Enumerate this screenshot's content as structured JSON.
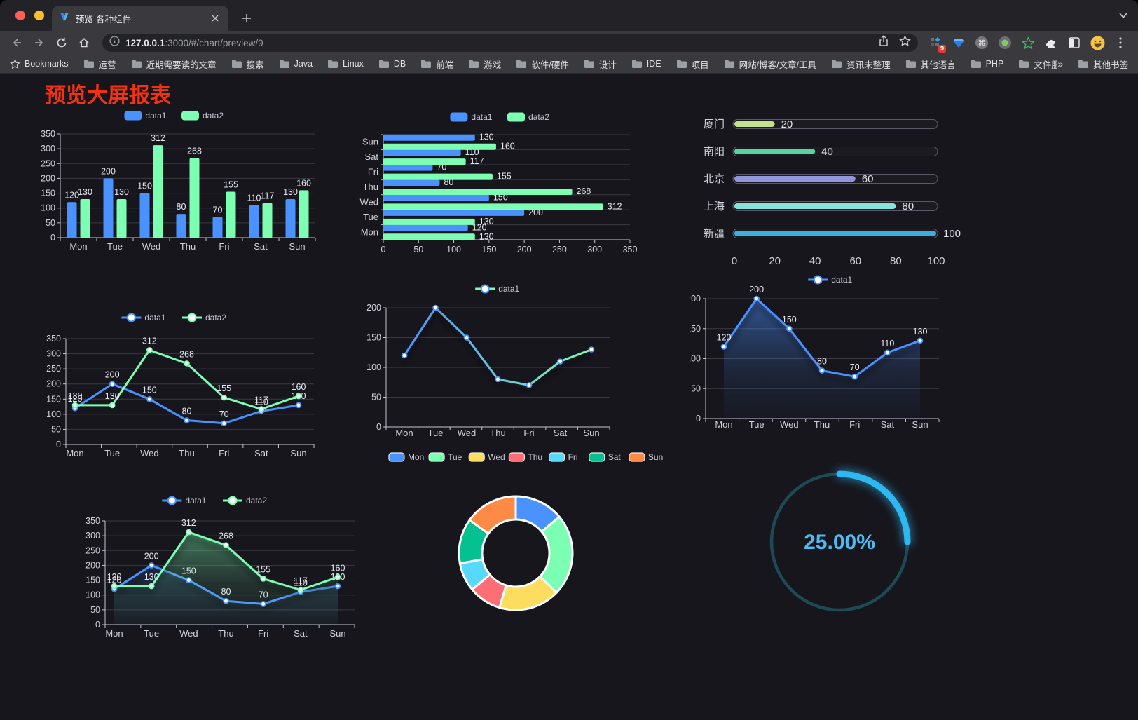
{
  "browser": {
    "tab": {
      "title": "预览-各种组件"
    },
    "url": {
      "host": "127.0.0.1",
      "rest": ":3000/#/chart/preview/9"
    },
    "extension_badge": "9",
    "bookmarks_label": "Bookmarks",
    "bookmarks": [
      "运营",
      "近期需要读的文章",
      "搜索",
      "Java",
      "Linux",
      "DB",
      "前端",
      "游戏",
      "软件/硬件",
      "设计",
      "IDE",
      "项目",
      "网站/博客/文章/工具",
      "资讯未整理",
      "其他语言",
      "PHP",
      "文件服务器"
    ],
    "bookmarks_overflow": "»",
    "other_bookmarks": "其他书签"
  },
  "page": {
    "title": "预览大屏报表"
  },
  "chart_data": [
    {
      "id": "bar-vertical",
      "type": "bar",
      "categories": [
        "Mon",
        "Tue",
        "Wed",
        "Thu",
        "Fri",
        "Sat",
        "Sun"
      ],
      "ylim": [
        0,
        350
      ],
      "ystep": 50,
      "series": [
        {
          "name": "data1",
          "color": "#4992ff",
          "values": [
            120,
            200,
            150,
            80,
            70,
            110,
            130
          ]
        },
        {
          "name": "data2",
          "color": "#7cffb2",
          "values": [
            130,
            130,
            312,
            268,
            155,
            117,
            160
          ]
        }
      ]
    },
    {
      "id": "bar-horizontal",
      "type": "bar-horizontal",
      "categories": [
        "Mon",
        "Tue",
        "Wed",
        "Thu",
        "Fri",
        "Sat",
        "Sun"
      ],
      "xlim": [
        0,
        350
      ],
      "xstep": 50,
      "series": [
        {
          "name": "data1",
          "color": "#4992ff",
          "values": [
            120,
            200,
            150,
            80,
            70,
            110,
            130
          ]
        },
        {
          "name": "data2",
          "color": "#7cffb2",
          "values": [
            130,
            130,
            312,
            268,
            155,
            117,
            160
          ]
        }
      ]
    },
    {
      "id": "capsule",
      "type": "capsule-bar",
      "max": 100,
      "xticks": [
        0,
        20,
        40,
        60,
        80,
        100
      ],
      "items": [
        {
          "label": "厦门",
          "value": 20,
          "color": "#c2e38c"
        },
        {
          "label": "南阳",
          "value": 40,
          "color": "#58d3a6"
        },
        {
          "label": "北京",
          "value": 60,
          "color": "#9097dd"
        },
        {
          "label": "上海",
          "value": 80,
          "color": "#86e2dd"
        },
        {
          "label": "新疆",
          "value": 100,
          "color": "#3cafe1"
        }
      ]
    },
    {
      "id": "line-two",
      "type": "line",
      "categories": [
        "Mon",
        "Tue",
        "Wed",
        "Thu",
        "Fri",
        "Sat",
        "Sun"
      ],
      "ylim": [
        0,
        350
      ],
      "ystep": 50,
      "labels": true,
      "series": [
        {
          "name": "data1",
          "color": "#4992ff",
          "values": [
            120,
            200,
            150,
            80,
            70,
            110,
            130
          ]
        },
        {
          "name": "data2",
          "color": "#7cffb2",
          "values": [
            130,
            130,
            312,
            268,
            155,
            117,
            160
          ]
        }
      ]
    },
    {
      "id": "line-gradient",
      "type": "line",
      "categories": [
        "Mon",
        "Tue",
        "Wed",
        "Thu",
        "Fri",
        "Sat",
        "Sun"
      ],
      "ylim": [
        0,
        200
      ],
      "ystep": 50,
      "labels": false,
      "shadow": true,
      "series": [
        {
          "name": "data1",
          "gradient": [
            "#4992ff",
            "#7cffb2"
          ],
          "values": [
            120,
            200,
            150,
            80,
            70,
            110,
            130
          ]
        }
      ]
    },
    {
      "id": "area-single",
      "type": "line",
      "categories": [
        "Mon",
        "Tue",
        "Wed",
        "Thu",
        "Fri",
        "Sat",
        "Sun"
      ],
      "ylim": [
        0,
        200
      ],
      "ystep": 50,
      "labels": true,
      "shadow": true,
      "series": [
        {
          "name": "data1",
          "color": "#4992ff",
          "area": true,
          "values": [
            120,
            200,
            150,
            80,
            70,
            110,
            130
          ]
        }
      ]
    },
    {
      "id": "area-two",
      "type": "line",
      "categories": [
        "Mon",
        "Tue",
        "Wed",
        "Thu",
        "Fri",
        "Sat",
        "Sun"
      ],
      "ylim": [
        0,
        350
      ],
      "ystep": 50,
      "labels": true,
      "shadow": true,
      "series": [
        {
          "name": "data1",
          "color": "#4992ff",
          "area": true,
          "values": [
            120,
            200,
            150,
            80,
            70,
            110,
            130
          ]
        },
        {
          "name": "data2",
          "color": "#7cffb2",
          "area": true,
          "values": [
            130,
            130,
            312,
            268,
            155,
            117,
            160
          ]
        }
      ]
    },
    {
      "id": "pie",
      "type": "pie",
      "items": [
        {
          "label": "Mon",
          "value": 120,
          "color": "#4992ff"
        },
        {
          "label": "Tue",
          "value": 200,
          "color": "#7cffb2"
        },
        {
          "label": "Wed",
          "value": 150,
          "color": "#fddd60"
        },
        {
          "label": "Thu",
          "value": 80,
          "color": "#ff6e76"
        },
        {
          "label": "Fri",
          "value": 70,
          "color": "#58d9f9"
        },
        {
          "label": "Sat",
          "value": 110,
          "color": "#05c091"
        },
        {
          "label": "Sun",
          "value": 130,
          "color": "#ff8a45"
        }
      ]
    },
    {
      "id": "gauge",
      "type": "gauge",
      "value": 25,
      "max": 100,
      "label": "25.00%",
      "color": "#2eb8f2",
      "track": "#1d4a55",
      "text_color": "#4cbcf2"
    }
  ]
}
